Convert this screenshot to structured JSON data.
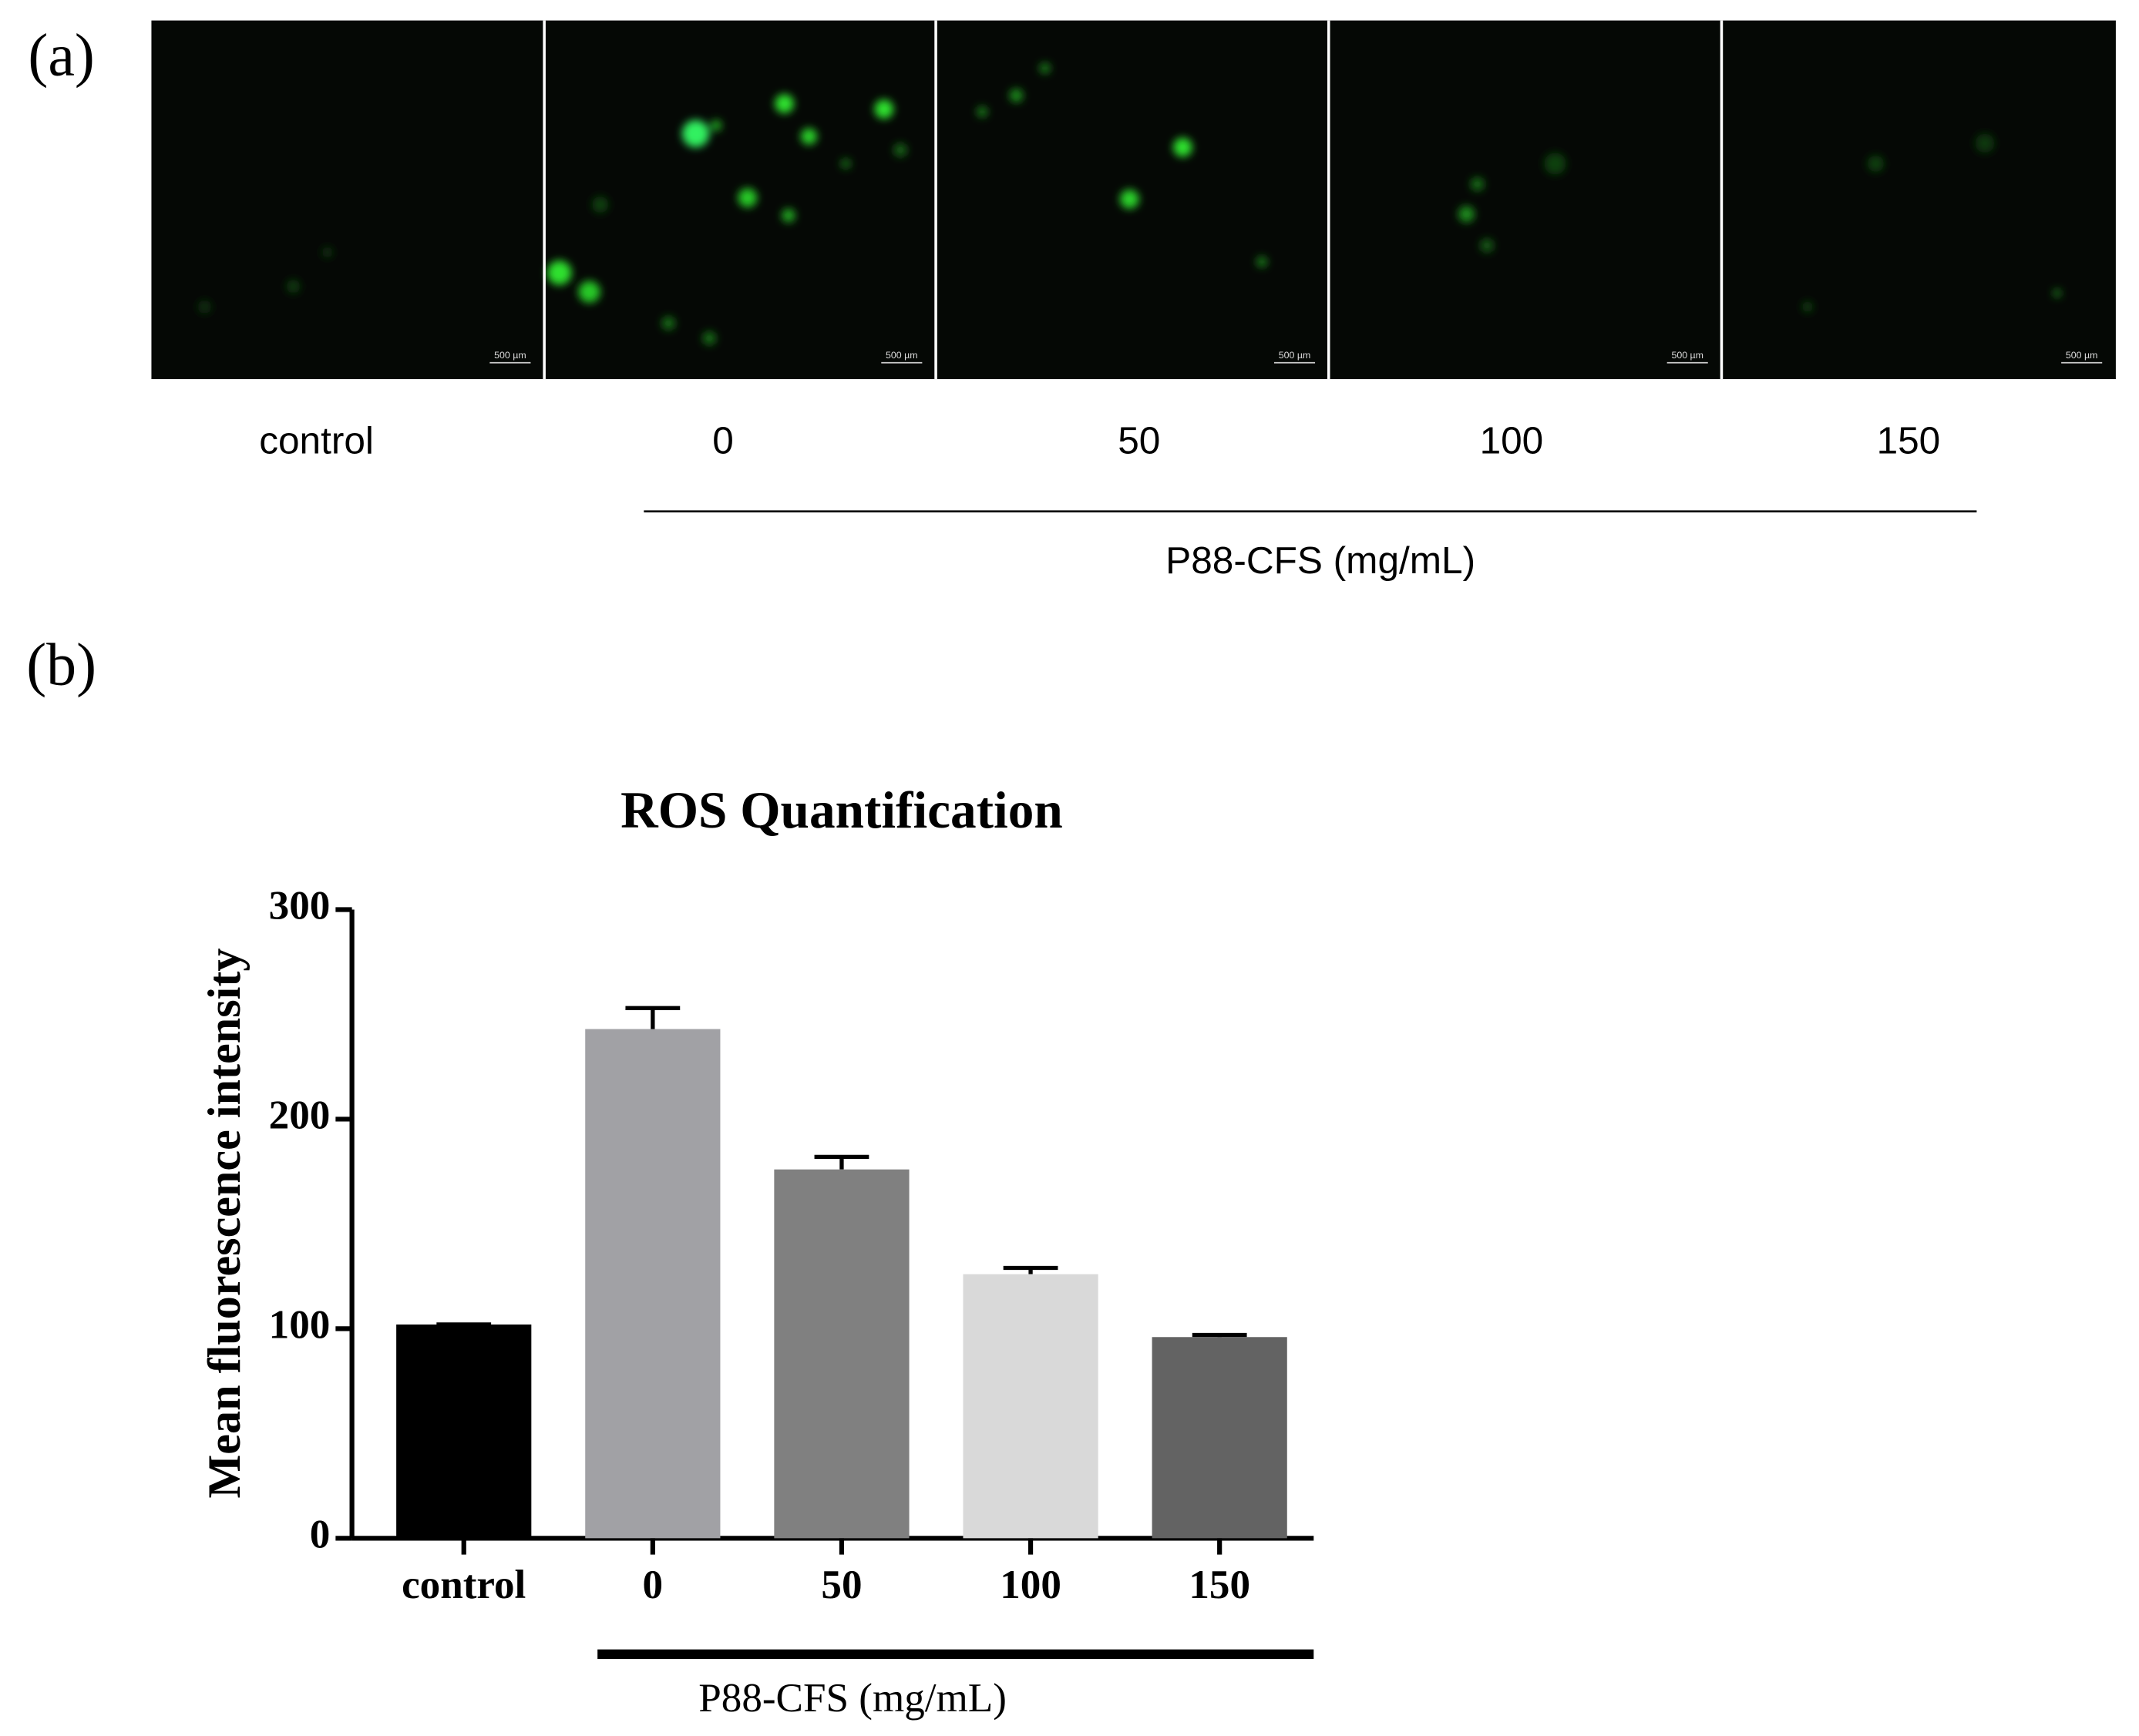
{
  "panel_a": {
    "label": "(a)",
    "images": [
      "control",
      "0",
      "50",
      "100",
      "150"
    ],
    "scale_bars": [
      "500 µm",
      "500 µm",
      "500 µm",
      "500 µm",
      "500 µm"
    ],
    "group_label": "P88-CFS (mg/mL)"
  },
  "panel_b": {
    "label": "(b)"
  },
  "chart_data": {
    "type": "bar",
    "title": "ROS Quantification",
    "y_label": "Mean fluorescence intensity",
    "categories": [
      "control",
      "0",
      "50",
      "100",
      "150"
    ],
    "values": [
      102,
      243,
      176,
      126,
      96
    ],
    "errors": [
      0,
      10,
      6,
      3,
      1
    ],
    "colors": [
      "#000000",
      "#a1a1a5",
      "#808080",
      "#d9d9d9",
      "#636363"
    ],
    "group_label": "P88-CFS (mg/mL)",
    "ylim": [
      0,
      300
    ],
    "yticks": [
      0,
      100,
      200,
      300
    ]
  }
}
